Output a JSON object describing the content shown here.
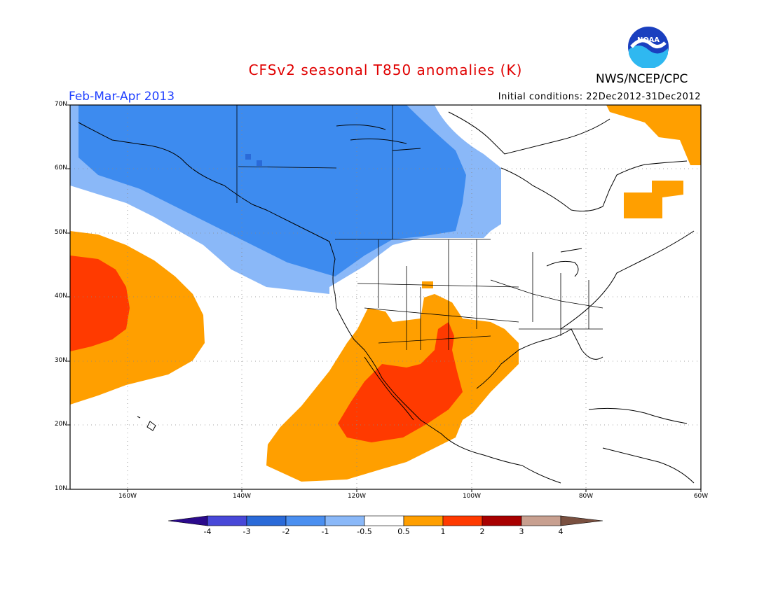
{
  "title": "CFSv2 seasonal T850 anomalies (K)",
  "season": "Feb-Mar-Apr 2013",
  "initial_conditions": "Initial conditions: 22Dec2012-31Dec2012",
  "agency": "NWS/NCEP/CPC",
  "logo_text": "NOAA",
  "lat_labels": [
    "70N",
    "60N",
    "50N",
    "40N",
    "30N",
    "20N",
    "10N"
  ],
  "lon_labels": [
    "160W",
    "140W",
    "120W",
    "100W",
    "80W",
    "60W"
  ],
  "colorbar": {
    "labels": [
      "-4",
      "-3",
      "-2",
      "-1",
      "-0.5",
      "0.5",
      "1",
      "2",
      "3",
      "4"
    ],
    "colors": [
      "#2b0a8c",
      "#4848d8",
      "#2a6ad8",
      "#4a8ff0",
      "#8ab8f8",
      "#ffffff",
      "#ff9f00",
      "#ff3a00",
      "#a80000",
      "#c8a090",
      "#7a5040"
    ]
  }
}
